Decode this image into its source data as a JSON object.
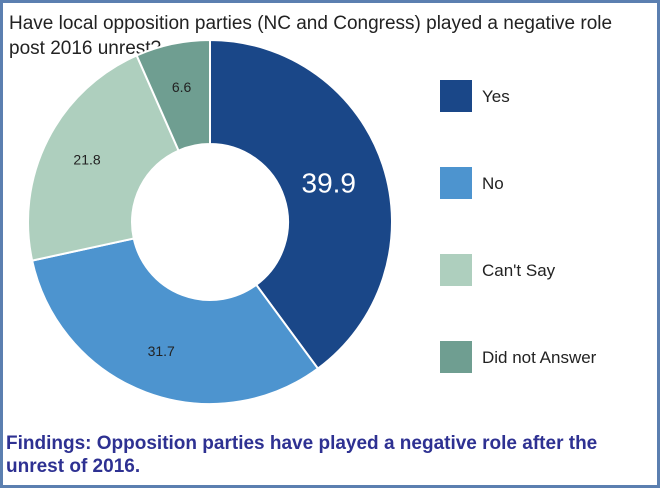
{
  "chart_data": {
    "type": "pie",
    "donut": true,
    "title": "Have local opposition parties (NC and Congress) played a negative role post 2016 unrest?",
    "categories": [
      "Yes",
      "No",
      "Can't Say",
      "Did not Answer"
    ],
    "values": [
      39.9,
      31.7,
      21.8,
      6.6
    ],
    "value_labels": [
      "39.9",
      "31.7",
      "21.8",
      "6.6"
    ],
    "colors": [
      "#1a4788",
      "#4d94cf",
      "#aecfbe",
      "#6f9e91"
    ],
    "label_colors": [
      "#ffffff",
      "#222222",
      "#222222",
      "#222222"
    ],
    "legend_placement": "right"
  },
  "findings": "Findings: Opposition parties have played a negative role after the unrest of 2016."
}
